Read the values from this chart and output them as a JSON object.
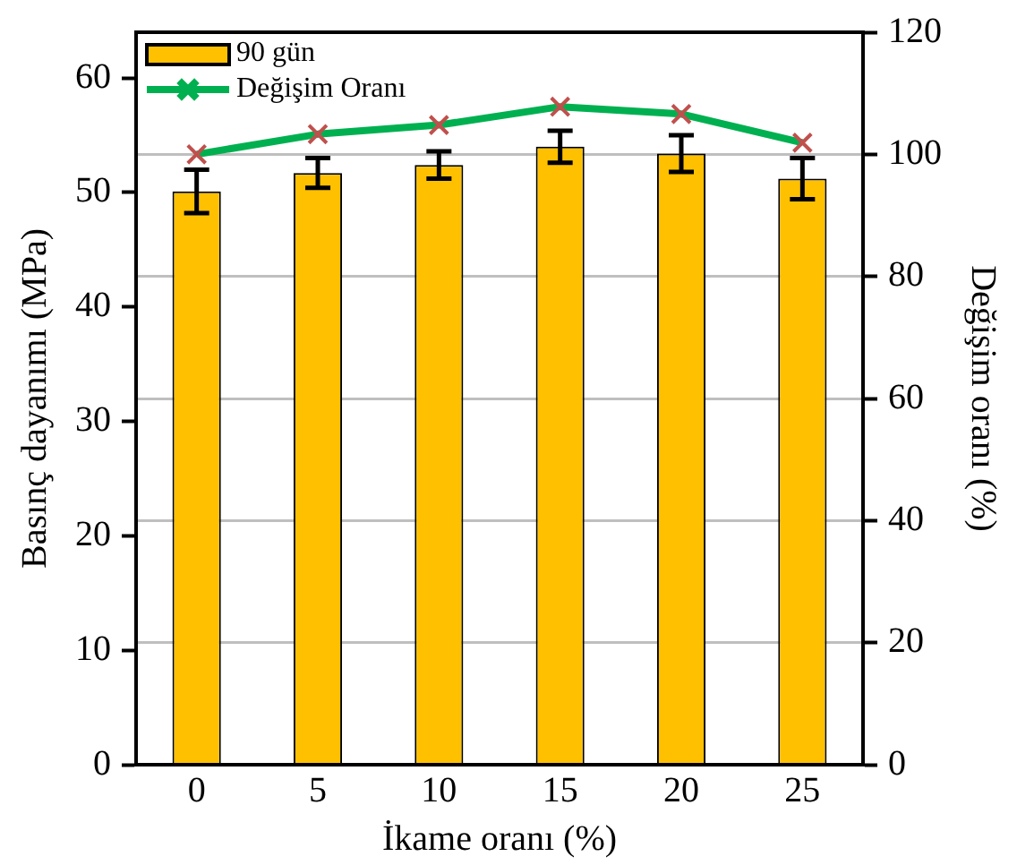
{
  "chart_data": {
    "type": "bar",
    "xlabel": "İkame oranı (%)",
    "ylabel": "Basınç dayanımı (MPa)",
    "y2label": "Değişim oranı (%)",
    "categories": [
      "0",
      "5",
      "10",
      "15",
      "20",
      "25"
    ],
    "series": [
      {
        "name": "90 gün",
        "color": "#ffc000",
        "values": [
          50.1,
          51.7,
          52.4,
          54.0,
          53.4,
          51.2
        ],
        "errors": [
          1.9,
          1.3,
          1.2,
          1.4,
          1.6,
          1.8
        ]
      },
      {
        "name": "Değişim Oranı",
        "type": "line",
        "axis": "y2",
        "color": "#00b050",
        "marker": "cross",
        "values": [
          100,
          103.3,
          104.8,
          107.8,
          106.6,
          101.9
        ]
      }
    ],
    "ylim": [
      0,
      64
    ],
    "yticks": [
      0,
      10,
      20,
      30,
      40,
      50,
      60
    ],
    "y2lim": [
      0,
      120
    ],
    "y2ticks": [
      0,
      20,
      40,
      60,
      80,
      100,
      120
    ],
    "grid": "y2",
    "legend": "top left"
  }
}
